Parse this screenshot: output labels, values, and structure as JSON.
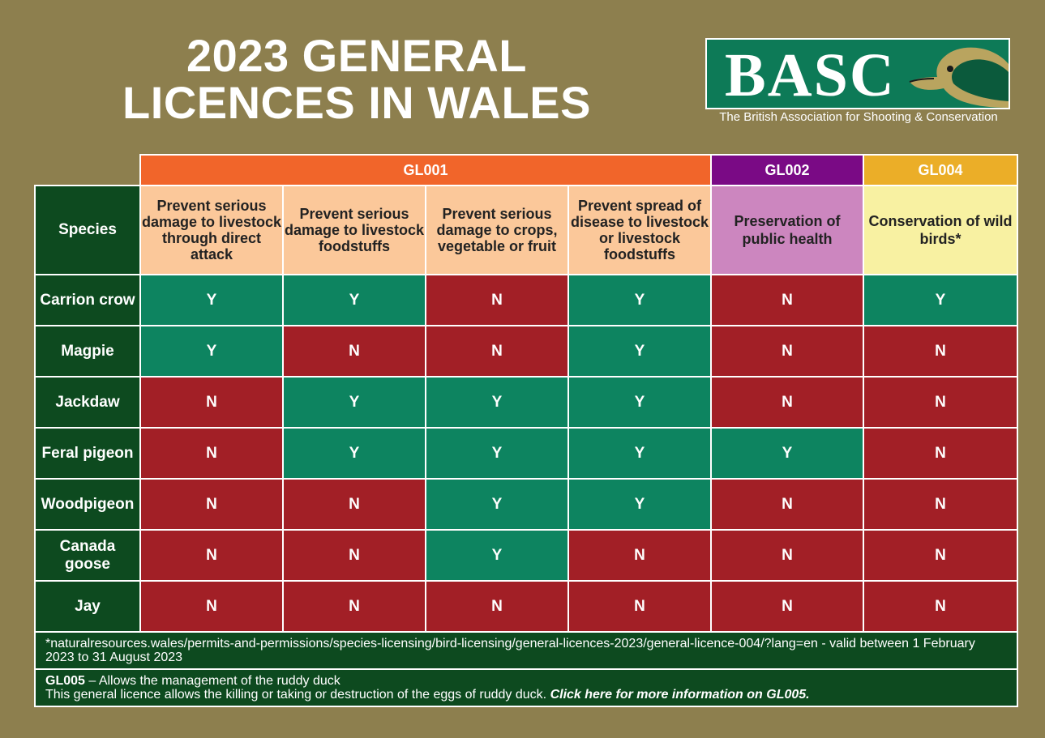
{
  "title": {
    "line1": "2023 GENERAL",
    "line2": "LICENCES IN WALES"
  },
  "logo": {
    "text": "BASC",
    "subtitle": "The British Association for Shooting & Conservation",
    "icon": "duck-head-icon"
  },
  "table": {
    "groups": [
      {
        "label": "GL001"
      },
      {
        "label": "GL002"
      },
      {
        "label": "GL004"
      }
    ],
    "species_header": "Species",
    "purposes": [
      "Prevent serious damage to livestock through direct attack",
      "Prevent serious damage to livestock foodstuffs",
      "Prevent serious damage to crops, vegetable or fruit",
      "Prevent spread of disease to livestock or livestock foodstuffs",
      "Preservation of public health",
      "Conservation of wild birds*"
    ],
    "rows": [
      {
        "species": "Carrion crow",
        "values": [
          "Y",
          "Y",
          "N",
          "Y",
          "N",
          "Y"
        ]
      },
      {
        "species": "Magpie",
        "values": [
          "Y",
          "N",
          "N",
          "Y",
          "N",
          "N"
        ]
      },
      {
        "species": "Jackdaw",
        "values": [
          "N",
          "Y",
          "Y",
          "Y",
          "N",
          "N"
        ]
      },
      {
        "species": "Feral pigeon",
        "values": [
          "N",
          "Y",
          "Y",
          "Y",
          "Y",
          "N"
        ]
      },
      {
        "species": "Woodpigeon",
        "values": [
          "N",
          "N",
          "Y",
          "Y",
          "N",
          "N"
        ]
      },
      {
        "species": "Canada goose",
        "values": [
          "N",
          "N",
          "Y",
          "N",
          "N",
          "N"
        ]
      },
      {
        "species": "Jay",
        "values": [
          "N",
          "N",
          "N",
          "N",
          "N",
          "N"
        ]
      }
    ]
  },
  "footer": {
    "note": "*naturalresources.wales/permits-and-permissions/species-licensing/bird-licensing/general-licences-2023/general-licence-004/?lang=en - valid between 1 February 2023 to 31 August 2023",
    "gl005_code": "GL005",
    "gl005_title": " – Allows the management of the ruddy duck",
    "gl005_text": "This general licence allows the killing or taking or destruction of the eggs of ruddy duck. ",
    "gl005_link": "Click here for more information on GL005."
  },
  "colors": {
    "yes": "#0d8460",
    "no": "#a21f26",
    "background": "#8d7f4e"
  }
}
